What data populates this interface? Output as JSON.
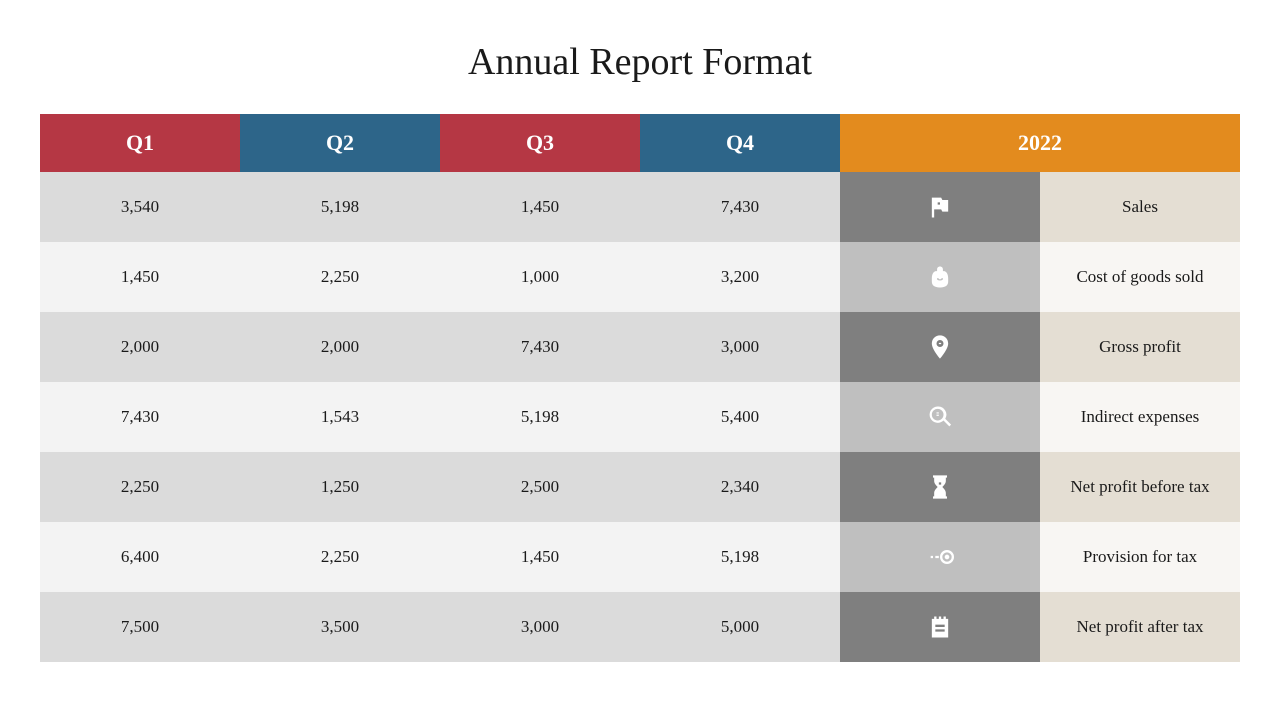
{
  "title": "Annual Report Format",
  "headers": {
    "q1": {
      "label": "Q1",
      "bg": "#b53744"
    },
    "q2": {
      "label": "Q2",
      "bg": "#2d6589"
    },
    "q3": {
      "label": "Q3",
      "bg": "#b53744"
    },
    "q4": {
      "label": "Q4",
      "bg": "#2d6589"
    },
    "year": {
      "label": "2022",
      "bg": "#e38b1e"
    }
  },
  "row_styles": {
    "odd_data_bg": "#dbdbdb",
    "even_data_bg": "#f3f3f3",
    "odd_icon_bg": "#7f7f7f",
    "even_icon_bg": "#bfbfbf",
    "odd_label_bg": "#e4ded3",
    "even_label_bg": "#f8f6f3"
  },
  "rows": [
    {
      "q1": "3,540",
      "q2": "5,198",
      "q3": "1,450",
      "q4": "7,430",
      "label": "Sales",
      "icon": "flag"
    },
    {
      "q1": "1,450",
      "q2": "2,250",
      "q3": "1,000",
      "q4": "3,200",
      "label": "Cost of goods sold",
      "icon": "bag"
    },
    {
      "q1": "2,000",
      "q2": "2,000",
      "q3": "7,430",
      "q4": "3,000",
      "label": "Gross profit",
      "icon": "pin"
    },
    {
      "q1": "7,430",
      "q2": "1,543",
      "q3": "5,198",
      "q4": "5,400",
      "label": "Indirect expenses",
      "icon": "search"
    },
    {
      "q1": "2,250",
      "q2": "1,250",
      "q3": "2,500",
      "q4": "2,340",
      "label": "Net profit before tax",
      "icon": "hourglass"
    },
    {
      "q1": "6,400",
      "q2": "2,250",
      "q3": "1,450",
      "q4": "5,198",
      "label": "Provision for tax",
      "icon": "target"
    },
    {
      "q1": "7,500",
      "q2": "3,500",
      "q3": "3,000",
      "q4": "5,000",
      "label": "Net profit after tax",
      "icon": "notepad"
    }
  ]
}
